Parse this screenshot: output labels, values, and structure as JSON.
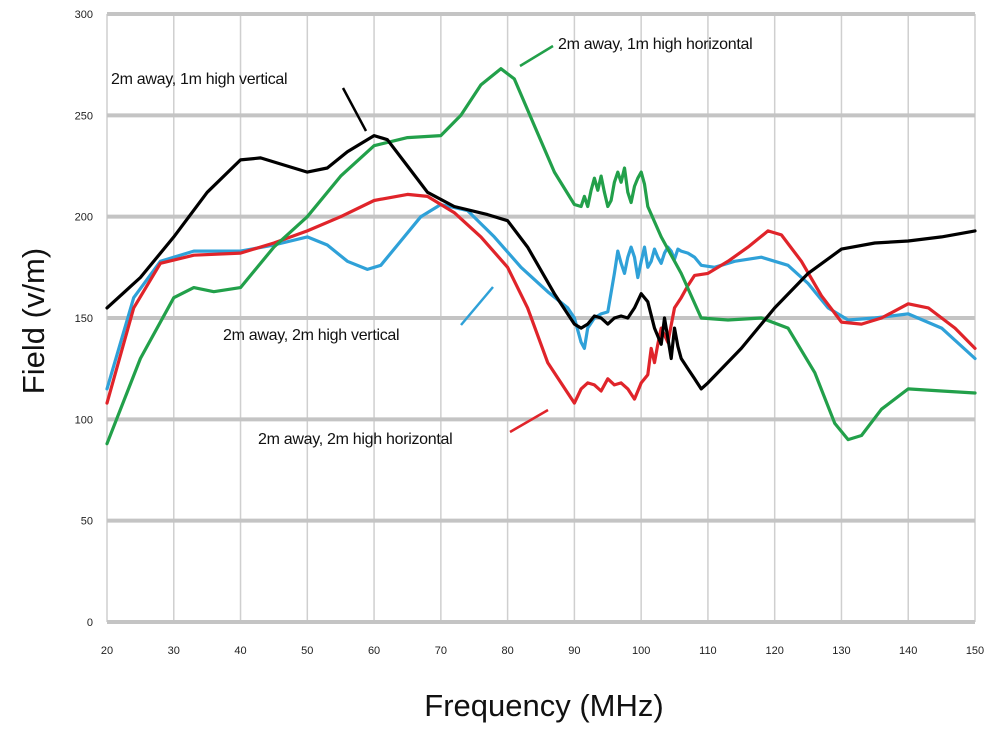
{
  "chart_data": {
    "type": "line",
    "title": "",
    "xlabel": "Frequency (MHz)",
    "ylabel": "Field (v/m)",
    "xlim": [
      20,
      150
    ],
    "ylim": [
      0,
      300
    ],
    "x_ticks": [
      20,
      30,
      40,
      50,
      60,
      70,
      80,
      90,
      100,
      110,
      120,
      130,
      140,
      150
    ],
    "y_ticks": [
      0,
      50,
      100,
      150,
      200,
      250,
      300
    ],
    "grid": true,
    "series": [
      {
        "name": "2m away, 1m high vertical",
        "color": "#000000",
        "points": [
          [
            20,
            155
          ],
          [
            25,
            170
          ],
          [
            30,
            190
          ],
          [
            35,
            212
          ],
          [
            40,
            228
          ],
          [
            43,
            229
          ],
          [
            46,
            226
          ],
          [
            50,
            222
          ],
          [
            53,
            224
          ],
          [
            56,
            232
          ],
          [
            60,
            240
          ],
          [
            62,
            238
          ],
          [
            65,
            225
          ],
          [
            68,
            212
          ],
          [
            72,
            205
          ],
          [
            77,
            201
          ],
          [
            80,
            198
          ],
          [
            83,
            185
          ],
          [
            87,
            162
          ],
          [
            90,
            147
          ],
          [
            91,
            145
          ],
          [
            92,
            147
          ],
          [
            93,
            151
          ],
          [
            94,
            150
          ],
          [
            95,
            147
          ],
          [
            96,
            150
          ],
          [
            97,
            151
          ],
          [
            98,
            150
          ],
          [
            99,
            155
          ],
          [
            100,
            162
          ],
          [
            101,
            158
          ],
          [
            102,
            145
          ],
          [
            103,
            137
          ],
          [
            103.5,
            150
          ],
          [
            104,
            140
          ],
          [
            104.5,
            130
          ],
          [
            105,
            145
          ],
          [
            105.5,
            136
          ],
          [
            106,
            130
          ],
          [
            107,
            125
          ],
          [
            108,
            120
          ],
          [
            109,
            115
          ],
          [
            110,
            118
          ],
          [
            115,
            135
          ],
          [
            120,
            155
          ],
          [
            125,
            172
          ],
          [
            130,
            184
          ],
          [
            135,
            187
          ],
          [
            140,
            188
          ],
          [
            145,
            190
          ],
          [
            150,
            193
          ]
        ]
      },
      {
        "name": "2m away, 1m high horizontal",
        "color": "#22a04a",
        "points": [
          [
            20,
            88
          ],
          [
            25,
            130
          ],
          [
            30,
            160
          ],
          [
            33,
            165
          ],
          [
            36,
            163
          ],
          [
            40,
            165
          ],
          [
            45,
            185
          ],
          [
            50,
            200
          ],
          [
            55,
            220
          ],
          [
            60,
            235
          ],
          [
            65,
            239
          ],
          [
            70,
            240
          ],
          [
            73,
            250
          ],
          [
            76,
            265
          ],
          [
            79,
            273
          ],
          [
            81,
            268
          ],
          [
            84,
            245
          ],
          [
            87,
            222
          ],
          [
            90,
            206
          ],
          [
            91,
            205
          ],
          [
            91.5,
            210
          ],
          [
            92,
            205
          ],
          [
            92.5,
            213
          ],
          [
            93,
            219
          ],
          [
            93.5,
            213
          ],
          [
            94,
            220
          ],
          [
            94.5,
            212
          ],
          [
            95,
            205
          ],
          [
            95.5,
            208
          ],
          [
            96,
            217
          ],
          [
            96.5,
            222
          ],
          [
            97,
            217
          ],
          [
            97.5,
            224
          ],
          [
            98,
            212
          ],
          [
            98.5,
            207
          ],
          [
            99,
            215
          ],
          [
            99.5,
            219
          ],
          [
            100,
            222
          ],
          [
            100.5,
            216
          ],
          [
            101,
            205
          ],
          [
            103,
            190
          ],
          [
            106,
            172
          ],
          [
            109,
            150
          ],
          [
            113,
            149
          ],
          [
            118,
            150
          ],
          [
            122,
            145
          ],
          [
            126,
            123
          ],
          [
            129,
            98
          ],
          [
            131,
            90
          ],
          [
            133,
            92
          ],
          [
            136,
            105
          ],
          [
            140,
            115
          ],
          [
            145,
            114
          ],
          [
            150,
            113
          ]
        ]
      },
      {
        "name": "2m away, 2m high vertical",
        "color": "#2fa1d8",
        "points": [
          [
            20,
            115
          ],
          [
            24,
            160
          ],
          [
            28,
            178
          ],
          [
            33,
            183
          ],
          [
            40,
            183
          ],
          [
            45,
            186
          ],
          [
            50,
            190
          ],
          [
            53,
            186
          ],
          [
            56,
            178
          ],
          [
            59,
            174
          ],
          [
            61,
            176
          ],
          [
            64,
            188
          ],
          [
            67,
            200
          ],
          [
            70,
            206
          ],
          [
            74,
            203
          ],
          [
            78,
            190
          ],
          [
            82,
            175
          ],
          [
            86,
            163
          ],
          [
            89,
            155
          ],
          [
            90,
            150
          ],
          [
            91,
            138
          ],
          [
            91.5,
            135
          ],
          [
            92,
            145
          ],
          [
            93,
            150
          ],
          [
            94,
            152
          ],
          [
            95,
            153
          ],
          [
            96,
            172
          ],
          [
            96.5,
            183
          ],
          [
            97,
            177
          ],
          [
            97.5,
            172
          ],
          [
            98,
            180
          ],
          [
            98.5,
            185
          ],
          [
            99,
            180
          ],
          [
            99.5,
            170
          ],
          [
            100,
            178
          ],
          [
            100.5,
            185
          ],
          [
            101,
            175
          ],
          [
            101.5,
            178
          ],
          [
            102,
            184
          ],
          [
            102.5,
            180
          ],
          [
            103,
            177
          ],
          [
            103.5,
            182
          ],
          [
            104,
            185
          ],
          [
            104.5,
            183
          ],
          [
            105,
            179
          ],
          [
            105.5,
            184
          ],
          [
            106,
            183
          ],
          [
            107,
            182
          ],
          [
            108,
            180
          ],
          [
            109,
            176
          ],
          [
            111,
            175
          ],
          [
            114,
            178
          ],
          [
            118,
            180
          ],
          [
            122,
            176
          ],
          [
            125,
            167
          ],
          [
            128,
            155
          ],
          [
            131,
            149
          ],
          [
            135,
            150
          ],
          [
            140,
            152
          ],
          [
            145,
            145
          ],
          [
            150,
            130
          ]
        ]
      },
      {
        "name": "2m away, 2m high horizontal",
        "color": "#e0242a",
        "points": [
          [
            20,
            108
          ],
          [
            24,
            155
          ],
          [
            28,
            177
          ],
          [
            33,
            181
          ],
          [
            40,
            182
          ],
          [
            45,
            187
          ],
          [
            50,
            193
          ],
          [
            55,
            200
          ],
          [
            60,
            208
          ],
          [
            65,
            211
          ],
          [
            68,
            210
          ],
          [
            72,
            202
          ],
          [
            76,
            190
          ],
          [
            80,
            175
          ],
          [
            83,
            155
          ],
          [
            86,
            128
          ],
          [
            89,
            113
          ],
          [
            90,
            108
          ],
          [
            91,
            115
          ],
          [
            92,
            118
          ],
          [
            93,
            117
          ],
          [
            94,
            114
          ],
          [
            95,
            120
          ],
          [
            96,
            117
          ],
          [
            97,
            118
          ],
          [
            98,
            115
          ],
          [
            99,
            110
          ],
          [
            100,
            118
          ],
          [
            101,
            122
          ],
          [
            101.5,
            135
          ],
          [
            102,
            128
          ],
          [
            102.5,
            137
          ],
          [
            103,
            145
          ],
          [
            104,
            138
          ],
          [
            105,
            155
          ],
          [
            106,
            160
          ],
          [
            107,
            166
          ],
          [
            108,
            171
          ],
          [
            110,
            172
          ],
          [
            113,
            178
          ],
          [
            116,
            185
          ],
          [
            119,
            193
          ],
          [
            121,
            191
          ],
          [
            124,
            178
          ],
          [
            127,
            161
          ],
          [
            130,
            148
          ],
          [
            133,
            147
          ],
          [
            136,
            150
          ],
          [
            140,
            157
          ],
          [
            143,
            155
          ],
          [
            147,
            145
          ],
          [
            150,
            135
          ]
        ]
      }
    ],
    "annotations": [
      {
        "text": "2m away, 1m high vertical",
        "series": "2m away, 1m high vertical"
      },
      {
        "text": "2m away, 1m high horizontal",
        "series": "2m away, 1m high horizontal"
      },
      {
        "text": "2m away, 2m high vertical",
        "series": "2m away, 2m high vertical"
      },
      {
        "text": "2m away, 2m high horizontal",
        "series": "2m away, 2m high horizontal"
      }
    ]
  }
}
